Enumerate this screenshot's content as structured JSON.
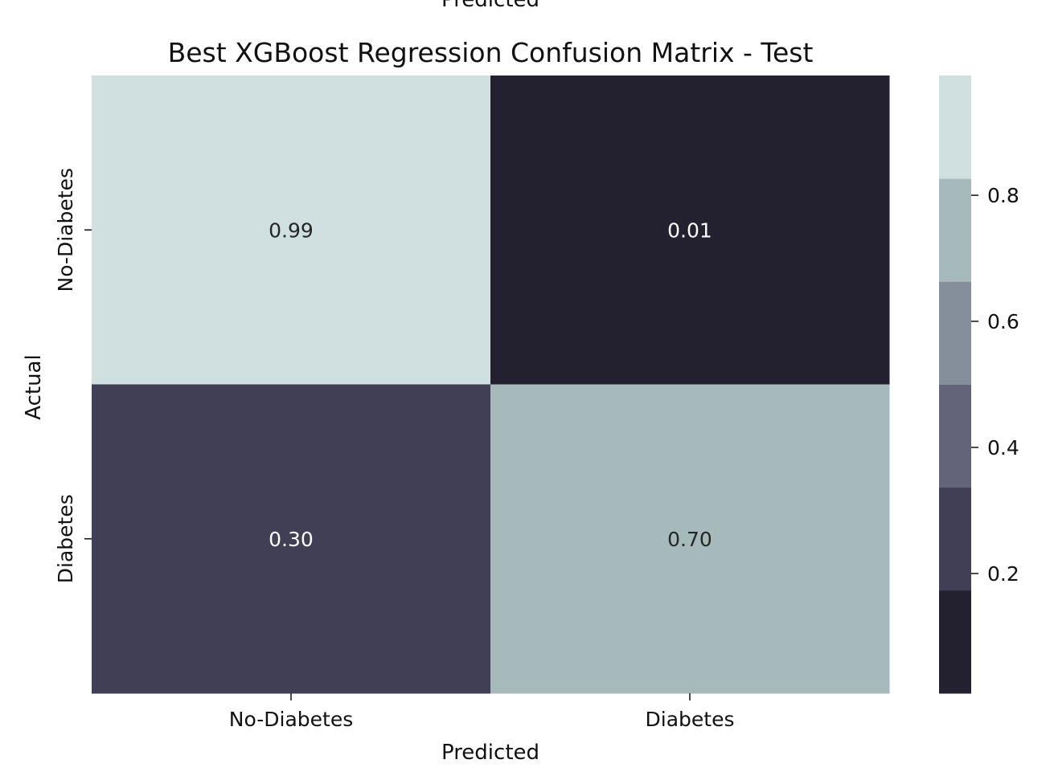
{
  "chart_data": {
    "type": "heatmap",
    "title": "Best XGBoost Regression Confusion Matrix - Test",
    "top_clipped_label": "Predicted",
    "xlabel": "Predicted",
    "ylabel": "Actual",
    "x_categories": [
      "No-Diabetes",
      "Diabetes"
    ],
    "y_categories": [
      "No-Diabetes",
      "Diabetes"
    ],
    "values": [
      [
        0.99,
        0.01
      ],
      [
        0.3,
        0.7
      ]
    ],
    "cell_labels": [
      [
        "0.99",
        "0.01"
      ],
      [
        "0.30",
        "0.70"
      ]
    ],
    "colorbar": {
      "range": [
        0.01,
        0.99
      ],
      "ticks": [
        0.2,
        0.4,
        0.6,
        0.8
      ],
      "tick_labels": [
        "0.2",
        "0.4",
        "0.6",
        "0.8"
      ],
      "bins": 6,
      "palette": [
        "#23212f",
        "#403f56",
        "#636479",
        "#858f9b",
        "#a6babc",
        "#d0dfdf"
      ]
    },
    "legend": "colorbar-right",
    "grid": false
  }
}
